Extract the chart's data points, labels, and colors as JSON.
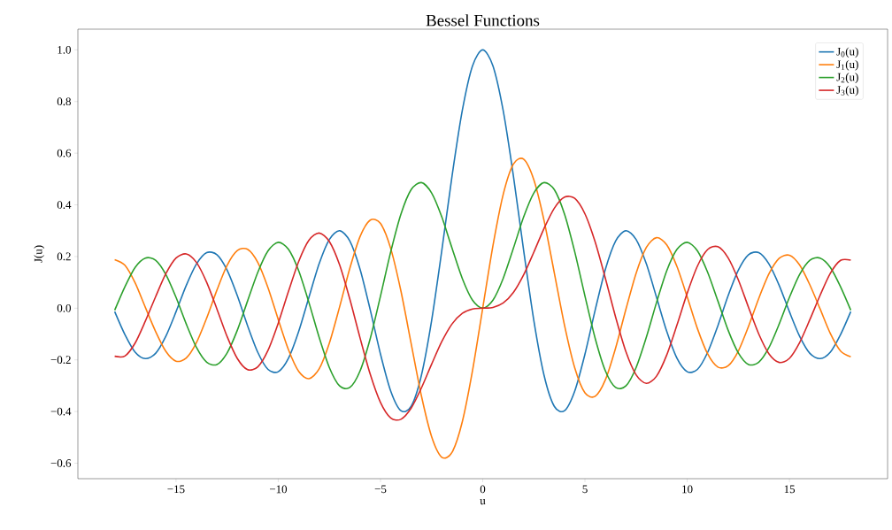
{
  "chart_data": {
    "type": "line",
    "title": "Bessel Functions",
    "xlabel": "u",
    "ylabel": "J(u)",
    "x": [
      -18,
      -17.5,
      -17,
      -16.5,
      -16,
      -15.5,
      -15,
      -14.5,
      -14,
      -13.5,
      -13,
      -12.5,
      -12,
      -11.5,
      -11,
      -10.5,
      -10,
      -9.5,
      -9,
      -8.5,
      -8,
      -7.5,
      -7,
      -6.5,
      -6,
      -5.5,
      -5,
      -4.5,
      -4,
      -3.5,
      -3,
      -2.5,
      -2,
      -1.5,
      -1,
      -0.5,
      0,
      0.5,
      1,
      1.5,
      2,
      2.5,
      3,
      3.5,
      4,
      4.5,
      5,
      5.5,
      6,
      6.5,
      7,
      7.5,
      8,
      8.5,
      9,
      9.5,
      10,
      10.5,
      11,
      11.5,
      12,
      12.5,
      13,
      13.5,
      14,
      14.5,
      15,
      15.5,
      16,
      16.5,
      17,
      17.5,
      18
    ],
    "series": [
      {
        "name": "J$_{0}$(u)",
        "color": "#1f77b4",
        "values": [
          -0.013,
          -0.102,
          -0.17,
          -0.195,
          -0.175,
          -0.109,
          -0.014,
          0.088,
          0.171,
          0.215,
          0.207,
          0.147,
          0.048,
          -0.068,
          -0.171,
          -0.237,
          -0.246,
          -0.194,
          -0.09,
          0.042,
          0.172,
          0.266,
          0.3,
          0.26,
          0.151,
          -0.007,
          -0.178,
          -0.321,
          -0.397,
          -0.38,
          -0.26,
          -0.048,
          0.224,
          0.512,
          0.765,
          0.938,
          1.0,
          0.938,
          0.765,
          0.512,
          0.224,
          -0.048,
          -0.26,
          -0.38,
          -0.397,
          -0.321,
          -0.178,
          -0.007,
          0.151,
          0.26,
          0.3,
          0.266,
          0.172,
          0.042,
          -0.09,
          -0.194,
          -0.246,
          -0.237,
          -0.171,
          -0.068,
          0.048,
          0.147,
          0.207,
          0.215,
          0.171,
          0.088,
          -0.014,
          -0.109,
          -0.175,
          -0.195,
          -0.17,
          -0.102,
          -0.013
        ]
      },
      {
        "name": "J$_{1}$(u)",
        "color": "#ff7f0e",
        "values": [
          0.188,
          0.166,
          0.098,
          0.003,
          -0.09,
          -0.167,
          -0.205,
          -0.193,
          -0.133,
          -0.038,
          0.07,
          0.166,
          0.223,
          0.228,
          0.177,
          0.079,
          -0.044,
          -0.161,
          -0.245,
          -0.273,
          -0.235,
          -0.135,
          0.005,
          0.154,
          0.277,
          0.341,
          0.328,
          0.231,
          0.066,
          -0.137,
          -0.339,
          -0.497,
          -0.577,
          -0.558,
          -0.44,
          -0.242,
          0,
          0.242,
          0.44,
          0.558,
          0.577,
          0.497,
          0.339,
          0.137,
          -0.066,
          -0.231,
          -0.328,
          -0.341,
          -0.277,
          -0.154,
          -0.005,
          0.135,
          0.235,
          0.273,
          0.245,
          0.161,
          0.044,
          -0.079,
          -0.177,
          -0.228,
          -0.223,
          -0.166,
          -0.07,
          0.038,
          0.133,
          0.193,
          0.205,
          0.167,
          0.09,
          -0.003,
          -0.098,
          -0.166,
          -0.188
        ]
      },
      {
        "name": "J$_{2}$(u)",
        "color": "#2ca02c",
        "values": [
          -0.008,
          0.083,
          0.158,
          0.194,
          0.186,
          0.131,
          0.042,
          -0.061,
          -0.152,
          -0.209,
          -0.218,
          -0.173,
          -0.085,
          0.028,
          0.139,
          0.222,
          0.255,
          0.228,
          0.145,
          0.022,
          -0.113,
          -0.23,
          -0.301,
          -0.307,
          -0.243,
          -0.117,
          0.047,
          0.218,
          0.364,
          0.459,
          0.486,
          0.446,
          0.353,
          0.232,
          0.115,
          0.031,
          0,
          0.031,
          0.115,
          0.232,
          0.353,
          0.446,
          0.486,
          0.459,
          0.364,
          0.218,
          0.047,
          -0.117,
          -0.243,
          -0.307,
          -0.301,
          -0.23,
          -0.113,
          0.022,
          0.145,
          0.228,
          0.255,
          0.222,
          0.139,
          0.028,
          -0.085,
          -0.173,
          -0.218,
          -0.209,
          -0.152,
          -0.061,
          0.042,
          0.131,
          0.186,
          0.194,
          0.158,
          0.083,
          -0.008
        ]
      },
      {
        "name": "J$_{3}$(u)",
        "color": "#d62728",
        "values": [
          -0.186,
          -0.185,
          -0.135,
          -0.05,
          0.044,
          0.133,
          0.194,
          0.21,
          0.177,
          0.1,
          -0.003,
          -0.11,
          -0.195,
          -0.238,
          -0.227,
          -0.163,
          -0.058,
          0.065,
          0.181,
          0.263,
          0.291,
          0.258,
          0.168,
          0.035,
          -0.115,
          -0.256,
          -0.365,
          -0.425,
          -0.43,
          -0.387,
          -0.309,
          -0.217,
          -0.129,
          -0.061,
          -0.02,
          -0.003,
          0,
          0.003,
          0.02,
          0.061,
          0.129,
          0.217,
          0.309,
          0.387,
          0.43,
          0.425,
          0.365,
          0.256,
          0.115,
          -0.035,
          -0.168,
          -0.258,
          -0.291,
          -0.263,
          -0.181,
          -0.065,
          0.058,
          0.163,
          0.227,
          0.238,
          0.195,
          0.11,
          0.003,
          -0.1,
          -0.177,
          -0.21,
          -0.194,
          -0.133,
          -0.044,
          0.05,
          0.135,
          0.185,
          0.186
        ]
      }
    ],
    "xlim": [
      -19.8,
      19.8
    ],
    "ylim": [
      -0.66,
      1.08
    ],
    "xticks": [
      {
        "value": -15,
        "label": "−15"
      },
      {
        "value": -10,
        "label": "−10"
      },
      {
        "value": -5,
        "label": "−5"
      },
      0,
      5,
      10,
      15
    ],
    "yticks": [
      {
        "value": -0.6,
        "label": "−0.6"
      },
      {
        "value": -0.4,
        "label": "−0.4"
      },
      {
        "value": -0.2,
        "label": "−0.2"
      },
      {
        "value": 0,
        "label": "0.0"
      },
      {
        "value": 0.2,
        "label": "0.2"
      },
      {
        "value": 0.4,
        "label": "0.4"
      },
      {
        "value": 0.6,
        "label": "0.6"
      },
      {
        "value": 0.8,
        "label": "0.8"
      },
      {
        "value": 1.0,
        "label": "1.0"
      }
    ],
    "legend": "top right",
    "grid": false,
    "marker": "none",
    "line_style": "solid"
  }
}
